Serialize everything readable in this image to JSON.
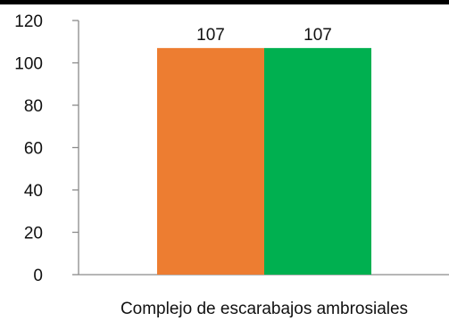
{
  "chart_data": {
    "type": "bar",
    "categories": [
      "Complejo de escarabajos ambrosiales"
    ],
    "series": [
      {
        "values": [
          107
        ],
        "color": "#ED7D31"
      },
      {
        "values": [
          107
        ],
        "color": "#00B050"
      }
    ],
    "ylim": [
      0,
      120
    ],
    "yticks": [
      0,
      20,
      40,
      60,
      80,
      100,
      120
    ],
    "grid": false,
    "legend": "none",
    "data_labels": true
  }
}
